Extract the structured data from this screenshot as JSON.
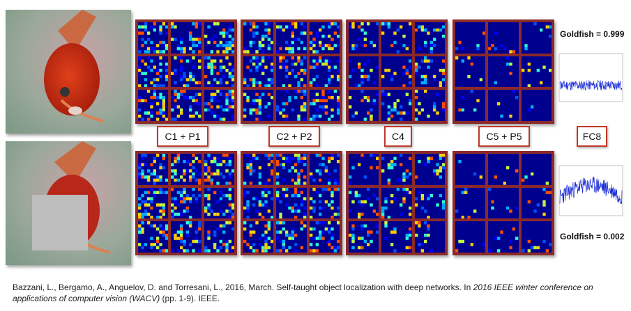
{
  "labels": {
    "c1": "C1 + P1",
    "c2": "C2 + P2",
    "c4": "C4",
    "c5": "C5 + P5",
    "fc8": "FC8"
  },
  "scores": {
    "top": "Goldfish = 0.999",
    "bottom": "Goldfish = 0.002"
  },
  "citation": {
    "part1": "Bazzani, L., Bergamo, A., Anguelov, D. and Torresani, L., 2016, March. Self-taught object localization with deep networks. In ",
    "venue": "2016 IEEE winter conference on applications of computer vision (WACV)",
    "part2": " (pp. 1-9). IEEE."
  },
  "colors": {
    "grid_border": "#8b2a2a",
    "label_border": "#c0392b",
    "heatmap_bg": "#00008f",
    "occluder": "#bdbdbd"
  }
}
